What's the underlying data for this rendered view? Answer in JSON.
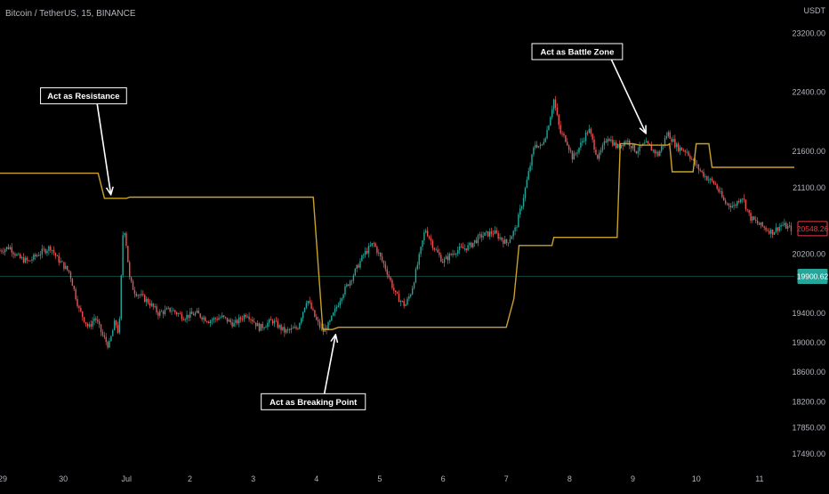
{
  "title": "Bitcoin / TetherUS, 15, BINANCE",
  "currency": "USDT",
  "chart_data": {
    "type": "line",
    "title": "Bitcoin / TetherUS, 15, BINANCE",
    "ylabel": "USDT",
    "ylim": [
      17250,
      23650
    ],
    "xlim": [
      -1.0,
      11.55
    ],
    "x_ticks": [
      {
        "x": -1.0,
        "label": "29"
      },
      {
        "x": 0.0,
        "label": "30"
      },
      {
        "x": 1.0,
        "label": "Jul"
      },
      {
        "x": 2.0,
        "label": "2"
      },
      {
        "x": 3.0,
        "label": "3"
      },
      {
        "x": 4.0,
        "label": "4"
      },
      {
        "x": 5.0,
        "label": "5"
      },
      {
        "x": 6.0,
        "label": "6"
      },
      {
        "x": 7.0,
        "label": "7"
      },
      {
        "x": 8.0,
        "label": "8"
      },
      {
        "x": 9.0,
        "label": "9"
      },
      {
        "x": 10.0,
        "label": "10"
      },
      {
        "x": 11.0,
        "label": "11"
      }
    ],
    "y_ticks": [
      {
        "v": 23200,
        "label": "23200.00"
      },
      {
        "v": 22400,
        "label": "22400.00"
      },
      {
        "v": 21600,
        "label": "21600.00"
      },
      {
        "v": 21100,
        "label": "21100.00"
      },
      {
        "v": 20200,
        "label": "20200.00"
      },
      {
        "v": 19400,
        "label": "19400.00"
      },
      {
        "v": 19000,
        "label": "19000.00"
      },
      {
        "v": 18600,
        "label": "18600.00"
      },
      {
        "v": 18200,
        "label": "18200.00"
      },
      {
        "v": 17850,
        "label": "17850.00"
      },
      {
        "v": 17490,
        "label": "17490.00"
      }
    ],
    "price_badges": [
      {
        "label": "20548.26",
        "value": 20548.26,
        "color": "#f23645",
        "style": "outline"
      },
      {
        "label": "19900.62",
        "value": 19900.62,
        "color": "#26a69a",
        "style": "filled"
      }
    ],
    "reference_line": {
      "value": 19900.62,
      "color": "#26a69a"
    },
    "colors": {
      "up": "#26a69a",
      "down": "#ef5350",
      "level_line": "#c9a227",
      "background": "#000000",
      "text": "#b2b5be"
    },
    "price_series": {
      "name": "",
      "points": [
        [
          -1.0,
          20250
        ],
        [
          -0.85,
          20300
        ],
        [
          -0.7,
          20150
        ],
        [
          -0.55,
          20100
        ],
        [
          -0.4,
          20200
        ],
        [
          -0.2,
          20300
        ],
        [
          -0.1,
          20150
        ],
        [
          0.1,
          19950
        ],
        [
          0.25,
          19450
        ],
        [
          0.4,
          19200
        ],
        [
          0.5,
          19350
        ],
        [
          0.62,
          19100
        ],
        [
          0.72,
          18950
        ],
        [
          0.82,
          19300
        ],
        [
          0.88,
          19100
        ],
        [
          0.92,
          20000
        ],
        [
          0.95,
          20650
        ],
        [
          1.0,
          20300
        ],
        [
          1.05,
          19850
        ],
        [
          1.12,
          19700
        ],
        [
          1.2,
          19650
        ],
        [
          1.35,
          19550
        ],
        [
          1.5,
          19400
        ],
        [
          1.7,
          19450
        ],
        [
          1.9,
          19350
        ],
        [
          2.1,
          19400
        ],
        [
          2.3,
          19300
        ],
        [
          2.5,
          19350
        ],
        [
          2.7,
          19250
        ],
        [
          2.9,
          19400
        ],
        [
          3.1,
          19200
        ],
        [
          3.3,
          19300
        ],
        [
          3.5,
          19150
        ],
        [
          3.7,
          19200
        ],
        [
          3.85,
          19600
        ],
        [
          4.0,
          19300
        ],
        [
          4.1,
          19150
        ],
        [
          4.2,
          19250
        ],
        [
          4.4,
          19650
        ],
        [
          4.6,
          19950
        ],
        [
          4.75,
          20200
        ],
        [
          4.9,
          20350
        ],
        [
          5.1,
          20000
        ],
        [
          5.25,
          19650
        ],
        [
          5.4,
          19500
        ],
        [
          5.5,
          19700
        ],
        [
          5.62,
          20150
        ],
        [
          5.72,
          20550
        ],
        [
          5.85,
          20300
        ],
        [
          6.0,
          20100
        ],
        [
          6.2,
          20250
        ],
        [
          6.4,
          20300
        ],
        [
          6.6,
          20450
        ],
        [
          6.8,
          20500
        ],
        [
          7.0,
          20350
        ],
        [
          7.15,
          20550
        ],
        [
          7.25,
          20900
        ],
        [
          7.35,
          21300
        ],
        [
          7.45,
          21700
        ],
        [
          7.55,
          21650
        ],
        [
          7.65,
          21900
        ],
        [
          7.75,
          22300
        ],
        [
          7.85,
          21850
        ],
        [
          7.95,
          21750
        ],
        [
          8.05,
          21500
        ],
        [
          8.15,
          21650
        ],
        [
          8.3,
          21900
        ],
        [
          8.45,
          21500
        ],
        [
          8.6,
          21800
        ],
        [
          8.75,
          21650
        ],
        [
          8.9,
          21750
        ],
        [
          9.05,
          21600
        ],
        [
          9.2,
          21700
        ],
        [
          9.4,
          21550
        ],
        [
          9.55,
          21850
        ],
        [
          9.7,
          21650
        ],
        [
          9.85,
          21600
        ],
        [
          10.0,
          21400
        ],
        [
          10.15,
          21250
        ],
        [
          10.3,
          21150
        ],
        [
          10.45,
          20900
        ],
        [
          10.6,
          20850
        ],
        [
          10.72,
          21000
        ],
        [
          10.85,
          20700
        ],
        [
          11.0,
          20600
        ],
        [
          11.2,
          20500
        ],
        [
          11.35,
          20600
        ],
        [
          11.5,
          20548
        ]
      ]
    },
    "level_series": {
      "name": "",
      "points": [
        [
          -1.0,
          21300
        ],
        [
          0.55,
          21300
        ],
        [
          0.65,
          20960
        ],
        [
          1.0,
          20960
        ],
        [
          1.05,
          20975
        ],
        [
          3.95,
          20975
        ],
        [
          4.1,
          19180
        ],
        [
          4.25,
          19180
        ],
        [
          4.35,
          19210
        ],
        [
          7.0,
          19210
        ],
        [
          7.12,
          19600
        ],
        [
          7.2,
          20320
        ],
        [
          7.72,
          20320
        ],
        [
          7.75,
          20430
        ],
        [
          8.75,
          20430
        ],
        [
          8.8,
          21700
        ],
        [
          9.0,
          21700
        ],
        [
          9.1,
          21680
        ],
        [
          9.55,
          21680
        ],
        [
          9.58,
          21700
        ],
        [
          9.62,
          21320
        ],
        [
          9.95,
          21320
        ],
        [
          10.0,
          21700
        ],
        [
          10.2,
          21700
        ],
        [
          10.25,
          21380
        ],
        [
          11.55,
          21380
        ]
      ]
    },
    "annotations": [
      {
        "text": "Act as Resistance",
        "box_x": 0.32,
        "box_y": 22350,
        "arrow_to": [
          0.75,
          21020
        ]
      },
      {
        "text": "Act as Breaking Point",
        "box_x": 3.95,
        "box_y": 18200,
        "arrow_to": [
          4.3,
          19100
        ]
      },
      {
        "text": "Act as Battle Zone",
        "box_x": 8.12,
        "box_y": 22950,
        "arrow_to": [
          9.2,
          21850
        ]
      }
    ]
  }
}
